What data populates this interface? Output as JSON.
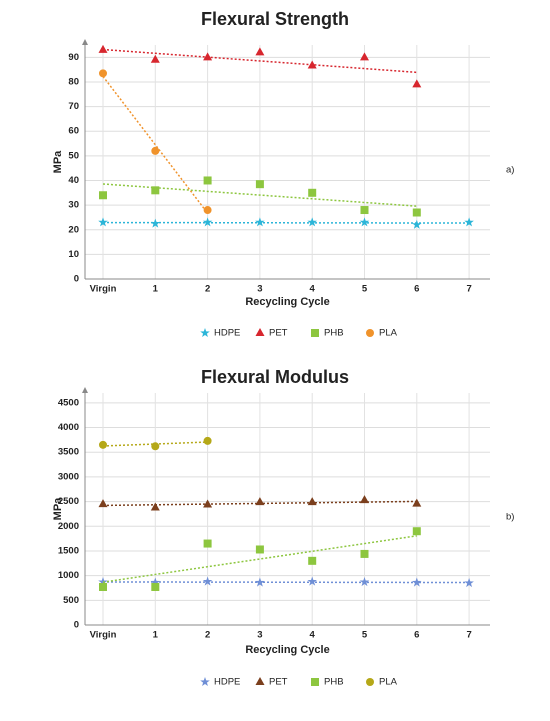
{
  "chart_data": [
    {
      "type": "line",
      "title": "Flexural Strength",
      "x_label": "Recycling Cycle",
      "y_label": "MPa",
      "annotation": "a)",
      "categories": [
        "Virgin",
        "1",
        "2",
        "3",
        "4",
        "5",
        "6",
        "7"
      ],
      "ylim": [
        0,
        95
      ],
      "yticks": [
        0,
        10,
        20,
        30,
        40,
        50,
        60,
        70,
        80,
        90
      ],
      "grid": true,
      "trendline": true,
      "series": [
        {
          "name": "HDPE",
          "color": "#2bb5d8",
          "marker": "star",
          "values": [
            23,
            22.5,
            23,
            23,
            23,
            23,
            22,
            23
          ]
        },
        {
          "name": "PET",
          "color": "#d7262e",
          "marker": "triangle",
          "values": [
            93,
            89,
            90,
            92,
            86.7,
            90,
            79,
            null
          ]
        },
        {
          "name": "PHB",
          "color": "#8dc63f",
          "marker": "square",
          "values": [
            34,
            36,
            40,
            38.5,
            35,
            28,
            27,
            null
          ]
        },
        {
          "name": "PLA",
          "color": "#f0932b",
          "marker": "circle",
          "values": [
            83.5,
            52,
            28,
            null,
            null,
            null,
            null,
            null
          ]
        }
      ]
    },
    {
      "type": "line",
      "title": "Flexural Modulus",
      "x_label": "Recycling Cycle",
      "y_label": "MPa",
      "annotation": "b)",
      "categories": [
        "Virgin",
        "1",
        "2",
        "3",
        "4",
        "5",
        "6",
        "7"
      ],
      "ylim": [
        0,
        4700
      ],
      "yticks": [
        0,
        500,
        1000,
        1500,
        2000,
        2500,
        3000,
        3500,
        4000,
        4500
      ],
      "grid": true,
      "trendline": true,
      "series": [
        {
          "name": "HDPE",
          "color": "#6f8fd6",
          "marker": "star",
          "values": [
            870,
            860,
            880,
            860,
            880,
            870,
            860,
            850
          ]
        },
        {
          "name": "PET",
          "color": "#7b3f1d",
          "marker": "triangle",
          "values": [
            2450,
            2380,
            2440,
            2490,
            2490,
            2530,
            2460,
            null
          ]
        },
        {
          "name": "PHB",
          "color": "#8dc63f",
          "marker": "square",
          "values": [
            770,
            770,
            1650,
            1530,
            1300,
            1440,
            1900,
            null
          ]
        },
        {
          "name": "PLA",
          "color": "#b5a818",
          "marker": "circle",
          "values": [
            3650,
            3620,
            3730,
            null,
            null,
            null,
            null,
            null
          ]
        }
      ]
    }
  ]
}
